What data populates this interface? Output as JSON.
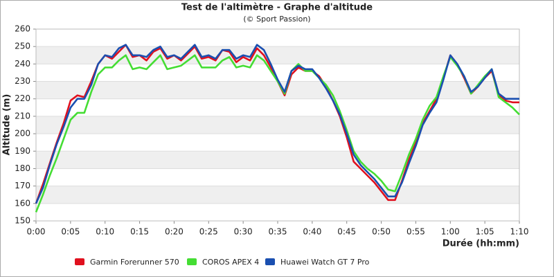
{
  "chart_data": {
    "type": "line",
    "title": "Test de l'altimètre - Graphe d'altitude",
    "subtitle": "(© Sport Passion)",
    "x_label": "Durée (hh:mm)",
    "y_label": "Altitude (m)",
    "x": [
      0,
      1,
      2,
      3,
      4,
      5,
      6,
      7,
      8,
      9,
      10,
      11,
      12,
      13,
      14,
      15,
      16,
      17,
      18,
      19,
      20,
      21,
      22,
      23,
      24,
      25,
      26,
      27,
      28,
      29,
      30,
      31,
      32,
      33,
      34,
      35,
      36,
      37,
      38,
      39,
      40,
      41,
      42,
      43,
      44,
      45,
      46,
      47,
      48,
      49,
      50,
      51,
      52,
      53,
      54,
      55,
      56,
      57,
      58,
      59,
      60,
      61,
      62,
      63,
      64,
      65,
      66,
      67,
      68,
      69,
      70
    ],
    "series": [
      {
        "name": "Garmin Forerunner 570",
        "color": "#e0101e",
        "values": [
          160,
          171,
          183,
          195,
          206,
          219,
          222,
          221,
          230,
          240,
          245,
          243,
          247,
          251,
          244,
          245,
          242,
          247,
          249,
          243,
          245,
          242,
          246,
          250,
          243,
          244,
          242,
          248,
          247,
          241,
          244,
          242,
          249,
          245,
          238,
          230,
          222,
          234,
          238,
          236,
          236,
          233,
          227,
          219,
          210,
          198,
          184,
          180,
          176,
          172,
          167,
          162,
          162,
          173,
          185,
          195,
          206,
          213,
          220,
          232,
          245,
          240,
          232,
          223,
          227,
          232,
          236,
          222,
          219,
          218,
          218
        ]
      },
      {
        "name": "COROS APEX 4",
        "color": "#44dd33",
        "values": [
          155,
          165,
          176,
          186,
          197,
          208,
          212,
          212,
          224,
          234,
          238,
          238,
          242,
          245,
          237,
          238,
          237,
          241,
          245,
          237,
          238,
          239,
          242,
          245,
          238,
          238,
          238,
          242,
          244,
          238,
          239,
          238,
          245,
          242,
          236,
          230,
          223,
          236,
          240,
          236,
          236,
          232,
          228,
          222,
          213,
          202,
          190,
          184,
          180,
          177,
          173,
          168,
          167,
          177,
          188,
          197,
          208,
          216,
          221,
          233,
          244,
          239,
          233,
          223,
          228,
          233,
          237,
          221,
          218,
          215,
          211
        ]
      },
      {
        "name": "Huawei Watch GT 7 Pro",
        "color": "#1a4fb0",
        "values": [
          160,
          169,
          182,
          194,
          204,
          215,
          220,
          220,
          228,
          240,
          245,
          244,
          249,
          251,
          245,
          245,
          244,
          248,
          250,
          244,
          245,
          243,
          247,
          251,
          244,
          245,
          243,
          248,
          248,
          243,
          245,
          244,
          251,
          248,
          240,
          231,
          224,
          236,
          239,
          237,
          237,
          232,
          226,
          219,
          211,
          200,
          188,
          182,
          178,
          174,
          169,
          164,
          164,
          172,
          183,
          193,
          205,
          212,
          218,
          231,
          245,
          240,
          233,
          224,
          227,
          232,
          237,
          223,
          220,
          220,
          220
        ]
      }
    ],
    "xlim": [
      0,
      70
    ],
    "xticks": [
      {
        "value": 0,
        "label": "0:00"
      },
      {
        "value": 5,
        "label": "0:05"
      },
      {
        "value": 10,
        "label": "0:10"
      },
      {
        "value": 15,
        "label": "0:15"
      },
      {
        "value": 20,
        "label": "0:20"
      },
      {
        "value": 25,
        "label": "0:25"
      },
      {
        "value": 30,
        "label": "0:30"
      },
      {
        "value": 35,
        "label": "0:35"
      },
      {
        "value": 40,
        "label": "0:40"
      },
      {
        "value": 45,
        "label": "0:45"
      },
      {
        "value": 50,
        "label": "0:50"
      },
      {
        "value": 55,
        "label": "0:55"
      },
      {
        "value": 60,
        "label": "1:00"
      },
      {
        "value": 65,
        "label": "1:05"
      },
      {
        "value": 70,
        "label": "1:10"
      }
    ],
    "ylim": [
      150,
      260
    ],
    "yticks": [
      150,
      160,
      170,
      180,
      190,
      200,
      210,
      220,
      230,
      240,
      250,
      260
    ],
    "grid": true
  }
}
